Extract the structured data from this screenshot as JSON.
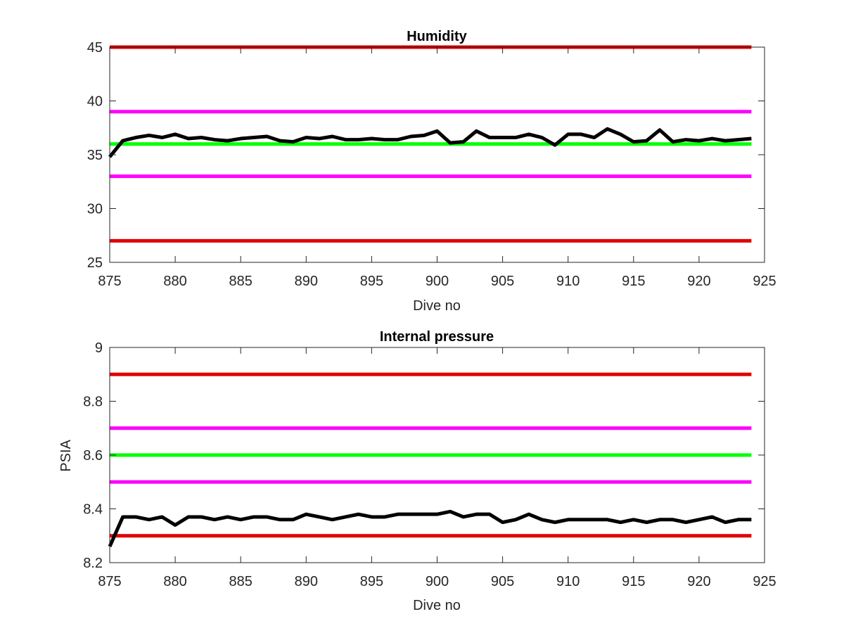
{
  "colors": {
    "limit_outer": "#e00000",
    "limit_inner": "#ff00ff",
    "target": "#00ff00",
    "series": "#000000",
    "axis": "#262626"
  },
  "chart_data": [
    {
      "type": "line",
      "title": "Humidity",
      "xlabel": "Dive no",
      "ylabel": "",
      "xlim": [
        875,
        925
      ],
      "ylim": [
        25,
        45
      ],
      "xticks": [
        875,
        880,
        885,
        890,
        895,
        900,
        905,
        910,
        915,
        920,
        925
      ],
      "yticks": [
        25,
        30,
        35,
        40,
        45
      ],
      "grid": false,
      "reference_lines": [
        {
          "y": 45,
          "color": "#e00000"
        },
        {
          "y": 39,
          "color": "#ff00ff"
        },
        {
          "y": 36,
          "color": "#00ff00"
        },
        {
          "y": 33,
          "color": "#ff00ff"
        },
        {
          "y": 27,
          "color": "#e00000"
        }
      ],
      "series": [
        {
          "color": "#000000",
          "x": [
            875,
            876,
            877,
            878,
            879,
            880,
            881,
            882,
            883,
            884,
            885,
            886,
            887,
            888,
            889,
            890,
            891,
            892,
            893,
            894,
            895,
            896,
            897,
            898,
            899,
            900,
            901,
            902,
            903,
            904,
            905,
            906,
            907,
            908,
            909,
            910,
            911,
            912,
            913,
            914,
            915,
            916,
            917,
            918,
            919,
            920,
            921,
            922,
            923,
            924
          ],
          "y": [
            34.8,
            36.3,
            36.6,
            36.8,
            36.6,
            36.9,
            36.5,
            36.6,
            36.4,
            36.3,
            36.5,
            36.6,
            36.7,
            36.3,
            36.2,
            36.6,
            36.5,
            36.7,
            36.4,
            36.4,
            36.5,
            36.4,
            36.4,
            36.7,
            36.8,
            37.2,
            36.1,
            36.2,
            37.2,
            36.6,
            36.6,
            36.6,
            36.9,
            36.6,
            35.9,
            36.9,
            36.9,
            36.6,
            37.4,
            36.9,
            36.2,
            36.3,
            37.3,
            36.2,
            36.4,
            36.3,
            36.5,
            36.3,
            36.4,
            36.5
          ]
        }
      ]
    },
    {
      "type": "line",
      "title": "Internal pressure",
      "xlabel": "Dive no",
      "ylabel": "PSIA",
      "xlim": [
        875,
        925
      ],
      "ylim": [
        8.2,
        9
      ],
      "xticks": [
        875,
        880,
        885,
        890,
        895,
        900,
        905,
        910,
        915,
        920,
        925
      ],
      "yticks": [
        8.2,
        8.4,
        8.6,
        8.8,
        9
      ],
      "ytick_labels": [
        "8.2",
        "8.4",
        "8.6",
        "8.8",
        "9"
      ],
      "grid": false,
      "reference_lines": [
        {
          "y": 8.9,
          "color": "#e00000"
        },
        {
          "y": 8.7,
          "color": "#ff00ff"
        },
        {
          "y": 8.6,
          "color": "#00ff00"
        },
        {
          "y": 8.5,
          "color": "#ff00ff"
        },
        {
          "y": 8.3,
          "color": "#e00000"
        }
      ],
      "series": [
        {
          "color": "#000000",
          "x": [
            875,
            876,
            877,
            878,
            879,
            880,
            881,
            882,
            883,
            884,
            885,
            886,
            887,
            888,
            889,
            890,
            891,
            892,
            893,
            894,
            895,
            896,
            897,
            898,
            899,
            900,
            901,
            902,
            903,
            904,
            905,
            906,
            907,
            908,
            909,
            910,
            911,
            912,
            913,
            914,
            915,
            916,
            917,
            918,
            919,
            920,
            921,
            922,
            923,
            924
          ],
          "y": [
            8.26,
            8.37,
            8.37,
            8.36,
            8.37,
            8.34,
            8.37,
            8.37,
            8.36,
            8.37,
            8.36,
            8.37,
            8.37,
            8.36,
            8.36,
            8.38,
            8.37,
            8.36,
            8.37,
            8.38,
            8.37,
            8.37,
            8.38,
            8.38,
            8.38,
            8.38,
            8.39,
            8.37,
            8.38,
            8.38,
            8.35,
            8.36,
            8.38,
            8.36,
            8.35,
            8.36,
            8.36,
            8.36,
            8.36,
            8.35,
            8.36,
            8.35,
            8.36,
            8.36,
            8.35,
            8.36,
            8.37,
            8.35,
            8.36,
            8.36
          ]
        }
      ]
    }
  ]
}
